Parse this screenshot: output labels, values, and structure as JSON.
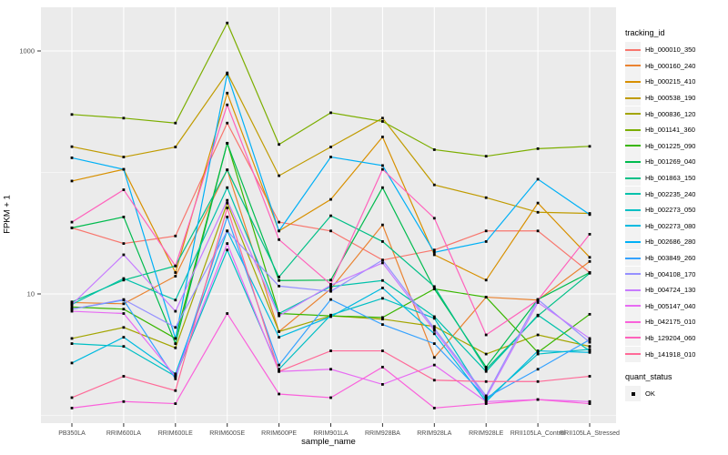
{
  "chart_data": {
    "type": "line",
    "title": "",
    "xlabel": "sample_name",
    "ylabel": "FPKM + 1",
    "y_scale": "log10",
    "y_tick_labels": [
      "1000",
      "10"
    ],
    "y_tick_values": [
      1000,
      10
    ],
    "y_minor_values": [
      100,
      1
    ],
    "ylim": [
      1,
      2000
    ],
    "grid": true,
    "legend_position": "right",
    "panel_bg": "#EBEBEB",
    "grid_color": "#FFFFFF",
    "tick_text_color": "#4D4D4D",
    "point_color": "#000000",
    "legend_title": "tracking_id",
    "legend2_title": "quant_status",
    "legend2_items": [
      {
        "label": "OK"
      }
    ],
    "categories": [
      "PB350LA",
      "RRIM600LA",
      "RRIM600LE",
      "RRIM600SE",
      "RRIM600PE",
      "RRIM901LA",
      "RRIM928BA",
      "RRIM928LA",
      "RRIM928LE",
      "RRII105LA_Control",
      "RRII105LA_Stressed"
    ],
    "series": [
      {
        "name": "Hb_000010_350",
        "color": "#F8766D",
        "values": [
          35,
          26,
          30,
          255,
          39,
          33,
          19,
          23,
          33,
          33,
          15
        ]
      },
      {
        "name": "Hb_000160_240",
        "color": "#EA8331",
        "values": [
          8.5,
          8.3,
          14,
          105,
          4.9,
          11,
          37,
          3.0,
          9.4,
          8.9,
          18.5
        ]
      },
      {
        "name": "Hb_000215_410",
        "color": "#D89000",
        "values": [
          85,
          106,
          15,
          450,
          33,
          60,
          196,
          21,
          13,
          56,
          20
        ]
      },
      {
        "name": "Hb_000538_190",
        "color": "#C09B00",
        "values": [
          163,
          134,
          162,
          660,
          94,
          162,
          280,
          79,
          62,
          47,
          46
        ]
      },
      {
        "name": "Hb_000836_120",
        "color": "#A3A500",
        "values": [
          4.3,
          5.3,
          3.6,
          56,
          4.9,
          6.6,
          6.2,
          5.4,
          3.2,
          4.6,
          3.7
        ]
      },
      {
        "name": "Hb_001141_360",
        "color": "#7CAE00",
        "values": [
          300,
          280,
          255,
          1700,
          170,
          310,
          263,
          154,
          136,
          157,
          164
        ]
      },
      {
        "name": "Hb_001225_090",
        "color": "#39B600",
        "values": [
          7.8,
          7.5,
          4.3,
          174,
          6.9,
          6.6,
          6.4,
          11,
          9.4,
          3.3,
          6.8
        ]
      },
      {
        "name": "Hb_001269_040",
        "color": "#00BB4E",
        "values": [
          35,
          43,
          3.9,
          174,
          12.9,
          13,
          75,
          11,
          2.5,
          9.0,
          15
        ]
      },
      {
        "name": "Hb_001863_150",
        "color": "#00C087",
        "values": [
          8.6,
          13,
          17,
          105,
          13.8,
          44,
          27,
          11.5,
          2.4,
          6.6,
          14.8
        ]
      },
      {
        "name": "Hb_002235_240",
        "color": "#00C1AB",
        "values": [
          8.2,
          13.4,
          8.9,
          75,
          6.9,
          11.5,
          12.9,
          6.5,
          2.3,
          6.7,
          3.4
        ]
      },
      {
        "name": "Hb_002273_050",
        "color": "#00BFC4",
        "values": [
          3.9,
          3.7,
          2.1,
          23,
          2.4,
          6.7,
          9.2,
          6.3,
          1.35,
          3.2,
          3.5
        ]
      },
      {
        "name": "Hb_002273_080",
        "color": "#00BAE0",
        "values": [
          2.7,
          4.4,
          2.2,
          33,
          4.4,
          6.5,
          11.2,
          4.7,
          1.3,
          3.4,
          3.3
        ]
      },
      {
        "name": "Hb_002686_280",
        "color": "#00B0F6",
        "values": [
          132,
          106,
          4.3,
          645,
          33,
          134,
          114,
          22,
          27,
          88,
          45
        ]
      },
      {
        "name": "Hb_003849_260",
        "color": "#35A2FF",
        "values": [
          7.5,
          8.9,
          2.0,
          43,
          2.6,
          9.0,
          5.6,
          3.9,
          1.4,
          2.4,
          4.2
        ]
      },
      {
        "name": "Hb_004108_170",
        "color": "#9590FF",
        "values": [
          7.5,
          9.0,
          5.3,
          33,
          11.6,
          10.5,
          19,
          5.2,
          1.45,
          9.0,
          4.0
        ]
      },
      {
        "name": "Hb_004724_130",
        "color": "#C77CFF",
        "values": [
          8.2,
          21,
          7.2,
          59,
          6.6,
          11.8,
          18,
          5.0,
          1.4,
          8.5,
          4.3
        ]
      },
      {
        "name": "Hb_005147_040",
        "color": "#E76BF3",
        "values": [
          7.2,
          6.9,
          2.1,
          26,
          2.3,
          2.4,
          1.8,
          2.6,
          1.3,
          1.35,
          1.3
        ]
      },
      {
        "name": "Hb_042175_010",
        "color": "#FA62DB",
        "values": [
          1.15,
          1.3,
          1.25,
          6.9,
          1.5,
          1.4,
          2.5,
          1.15,
          1.25,
          1.35,
          1.25
        ]
      },
      {
        "name": "Hb_129204_060",
        "color": "#FF62BC",
        "values": [
          39,
          72,
          17,
          360,
          28,
          12,
          106,
          42,
          4.6,
          8.9,
          31
        ]
      },
      {
        "name": "Hb_141918_010",
        "color": "#FF6A98",
        "values": [
          1.4,
          2.1,
          1.6,
          51,
          2.3,
          3.4,
          3.4,
          1.95,
          1.9,
          1.9,
          2.1
        ]
      }
    ]
  }
}
